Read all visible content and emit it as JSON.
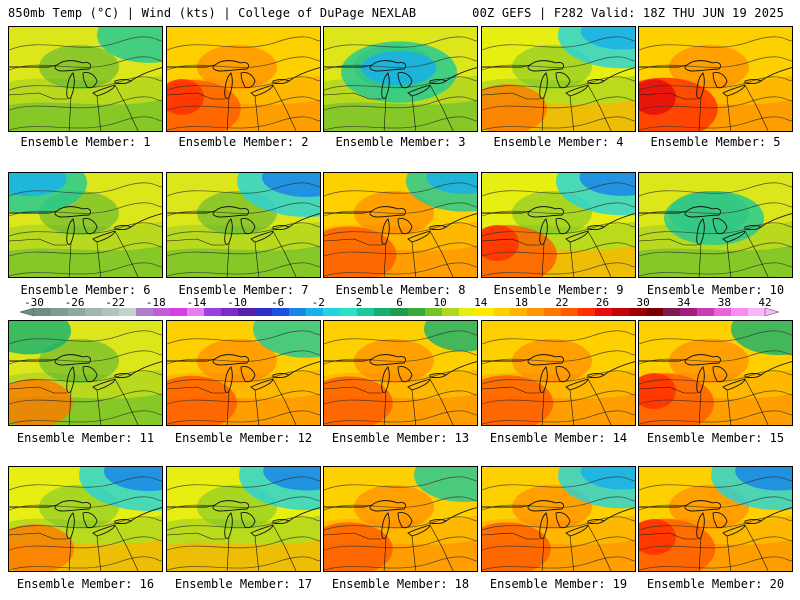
{
  "header": {
    "left": "850mb Temp (°C) | Wind (kts) | College of DuPage NEXLAB",
    "right": "00Z GEFS | F282 Valid: 18Z THU JUN 19 2025"
  },
  "colorbar": {
    "labels": [
      "-30",
      "-26",
      "-22",
      "-18",
      "-14",
      "-10",
      "-6",
      "-2",
      "2",
      "6",
      "10",
      "14",
      "18",
      "22",
      "26",
      "30",
      "34",
      "38",
      "42"
    ],
    "min": -30,
    "max": 42,
    "colors": [
      "#6e8d84",
      "#7f9c92",
      "#8fa9a0",
      "#a0b6ad",
      "#b1c3bb",
      "#c2d1c9",
      "#b07ccd",
      "#c25cd6",
      "#d63fe0",
      "#e67ef0",
      "#9b40e0",
      "#7a2bc8",
      "#5620a8",
      "#2d2dc8",
      "#1a4fe0",
      "#1a86e8",
      "#1ab0ea",
      "#22d3e0",
      "#2fe0c8",
      "#1ec89a",
      "#15b071",
      "#1e9c4a",
      "#3aa83a",
      "#76c22b",
      "#b2d61e",
      "#e7ee12",
      "#ffea00",
      "#ffd000",
      "#ffb400",
      "#ff9500",
      "#ff7800",
      "#ff5a00",
      "#ff3000",
      "#e80d0d",
      "#c40505",
      "#9e0000",
      "#7b0000",
      "#7d1a50",
      "#a01e80",
      "#c83cb4",
      "#e664dc",
      "#f58ef0",
      "#fbb6fa"
    ]
  },
  "members": [
    {
      "label": "Ensemble Member: 1",
      "scheme": "green",
      "hot": 0.15,
      "cold": 0.55,
      "cold_side": "tr"
    },
    {
      "label": "Ensemble Member: 2",
      "scheme": "orange",
      "hot": 0.75,
      "cold": 0.1,
      "cold_side": "tr"
    },
    {
      "label": "Ensemble Member: 3",
      "scheme": "green",
      "hot": 0.05,
      "cold": 0.7,
      "cold_side": "c"
    },
    {
      "label": "Ensemble Member: 4",
      "scheme": "mixed",
      "hot": 0.4,
      "cold": 0.85,
      "cold_side": "tr"
    },
    {
      "label": "Ensemble Member: 5",
      "scheme": "orange",
      "hot": 0.95,
      "cold": 0.2,
      "cold_side": "tr"
    },
    {
      "label": "Ensemble Member: 6",
      "scheme": "green",
      "hot": 0.2,
      "cold": 0.7,
      "cold_side": "tl"
    },
    {
      "label": "Ensemble Member: 7",
      "scheme": "green",
      "hot": 0.1,
      "cold": 1.0,
      "cold_side": "tr"
    },
    {
      "label": "Ensemble Member: 8",
      "scheme": "orange",
      "hot": 0.7,
      "cold": 0.7,
      "cold_side": "tr"
    },
    {
      "label": "Ensemble Member: 9",
      "scheme": "mixed",
      "hot": 0.8,
      "cold": 0.9,
      "cold_side": "tr"
    },
    {
      "label": "Ensemble Member: 10",
      "scheme": "green",
      "hot": 0.05,
      "cold": 0.5,
      "cold_side": "c"
    },
    {
      "label": "Ensemble Member: 11",
      "scheme": "green",
      "hot": 0.35,
      "cold": 0.3,
      "cold_side": "tl"
    },
    {
      "label": "Ensemble Member: 12",
      "scheme": "orange",
      "hot": 0.6,
      "cold": 0.6,
      "cold_side": "tr"
    },
    {
      "label": "Ensemble Member: 13",
      "scheme": "orange",
      "hot": 0.55,
      "cold": 0.25,
      "cold_side": "tr"
    },
    {
      "label": "Ensemble Member: 14",
      "scheme": "orange",
      "hot": 0.65,
      "cold": 0.2,
      "cold_side": "tr"
    },
    {
      "label": "Ensemble Member: 15",
      "scheme": "orange",
      "hot": 0.8,
      "cold": 0.45,
      "cold_side": "tr"
    },
    {
      "label": "Ensemble Member: 16",
      "scheme": "mixed",
      "hot": 0.4,
      "cold": 1.0,
      "cold_side": "tr"
    },
    {
      "label": "Ensemble Member: 17",
      "scheme": "mixed",
      "hot": 0.3,
      "cold": 0.95,
      "cold_side": "tr"
    },
    {
      "label": "Ensemble Member: 18",
      "scheme": "orange",
      "hot": 0.55,
      "cold": 0.5,
      "cold_side": "tr"
    },
    {
      "label": "Ensemble Member: 19",
      "scheme": "orange",
      "hot": 0.55,
      "cold": 0.85,
      "cold_side": "tr"
    },
    {
      "label": "Ensemble Member: 20",
      "scheme": "orange",
      "hot": 0.85,
      "cold": 0.95,
      "cold_side": "tr"
    }
  ]
}
